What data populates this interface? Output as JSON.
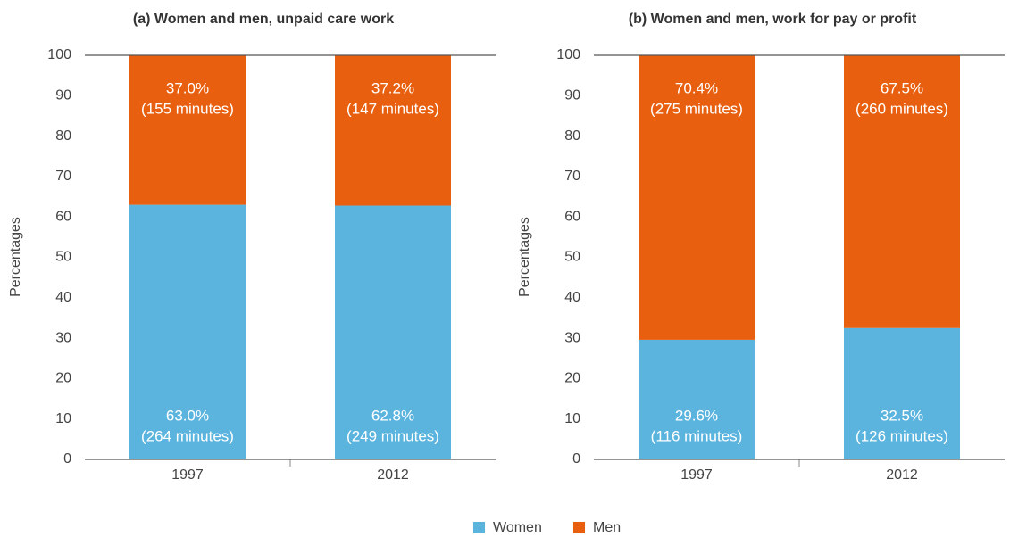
{
  "chart_data": [
    {
      "type": "stacked_bar",
      "title": "(a) Women and men, unpaid care work",
      "y_label": "Percentages",
      "categories": [
        "1997",
        "2012"
      ],
      "series": [
        {
          "name": "Women",
          "color": "#5bb4de",
          "values": [
            63.0,
            62.8
          ],
          "value_labels": [
            "63.0%",
            "62.8%"
          ],
          "minutes_labels": [
            "(264 minutes)",
            "(249 minutes)"
          ]
        },
        {
          "name": "Men",
          "color": "#e8600f",
          "values": [
            37.0,
            37.2
          ],
          "value_labels": [
            "37.0%",
            "37.2%"
          ],
          "minutes_labels": [
            "(155 minutes)",
            "(147 minutes)"
          ]
        }
      ],
      "ylim": [
        0,
        100
      ],
      "yticks": [
        0,
        10,
        20,
        30,
        40,
        50,
        60,
        70,
        80,
        90,
        100
      ]
    },
    {
      "type": "stacked_bar",
      "title": "(b) Women and men, work for pay or profit",
      "y_label": "Percentages",
      "categories": [
        "1997",
        "2012"
      ],
      "series": [
        {
          "name": "Women",
          "color": "#5bb4de",
          "values": [
            29.6,
            32.5
          ],
          "value_labels": [
            "29.6%",
            "32.5%"
          ],
          "minutes_labels": [
            "(116 minutes)",
            "(126 minutes)"
          ]
        },
        {
          "name": "Men",
          "color": "#e8600f",
          "values": [
            70.4,
            67.5
          ],
          "value_labels": [
            "70.4%",
            "67.5%"
          ],
          "minutes_labels": [
            "(275 minutes)",
            "(260 minutes)"
          ]
        }
      ],
      "ylim": [
        0,
        100
      ],
      "yticks": [
        0,
        10,
        20,
        30,
        40,
        50,
        60,
        70,
        80,
        90,
        100
      ]
    }
  ]
}
